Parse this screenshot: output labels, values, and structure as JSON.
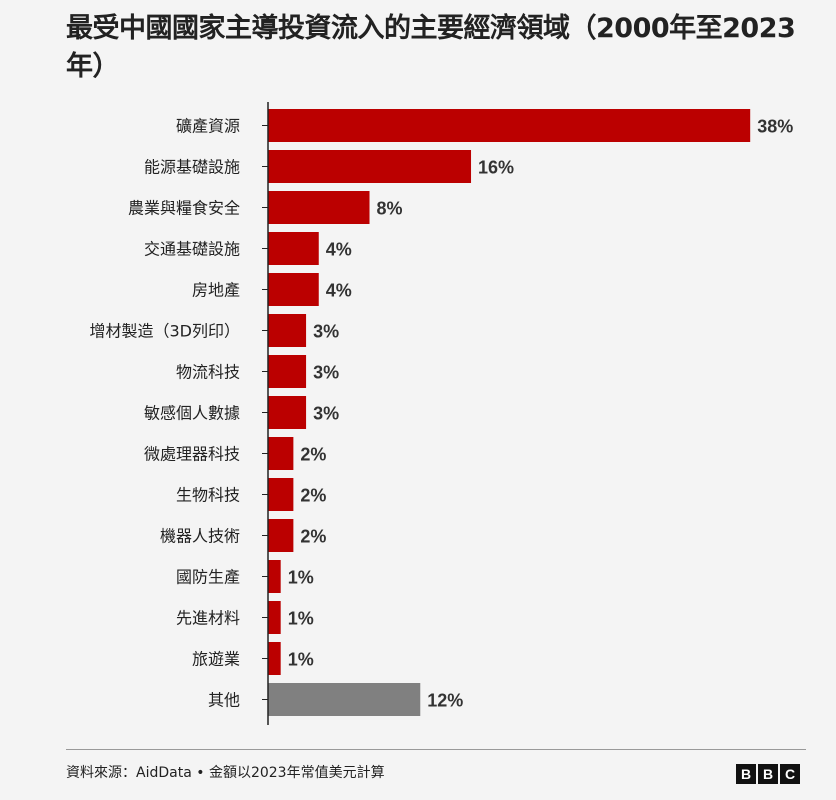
{
  "title": "最受中國國家主導投資流入的主要經濟領域（2000年至2023年）",
  "footer": {
    "source": "資料來源：AidData • 金額以2023年常值美元計算",
    "logo_letters": [
      "B",
      "B",
      "C"
    ]
  },
  "colors": {
    "primary_bar": "#bb0000",
    "other_bar": "#808080"
  },
  "chart_data": {
    "type": "bar",
    "orientation": "horizontal",
    "categories": [
      "礦產資源",
      "能源基礎設施",
      "農業與糧食安全",
      "交通基礎設施",
      "房地產",
      "增材製造（3D列印）",
      "物流科技",
      "敏感個人數據",
      "微處理器科技",
      "生物科技",
      "機器人技術",
      "國防生產",
      "先進材料",
      "旅遊業",
      "其他"
    ],
    "values": [
      38,
      16,
      8,
      4,
      4,
      3,
      3,
      3,
      2,
      2,
      2,
      1,
      1,
      1,
      12
    ],
    "value_labels": [
      "38%",
      "16%",
      "8%",
      "4%",
      "4%",
      "3%",
      "3%",
      "3%",
      "2%",
      "2%",
      "2%",
      "1%",
      "1%",
      "1%",
      "12%"
    ],
    "xlim": [
      0,
      38.3
    ],
    "grid": false
  }
}
